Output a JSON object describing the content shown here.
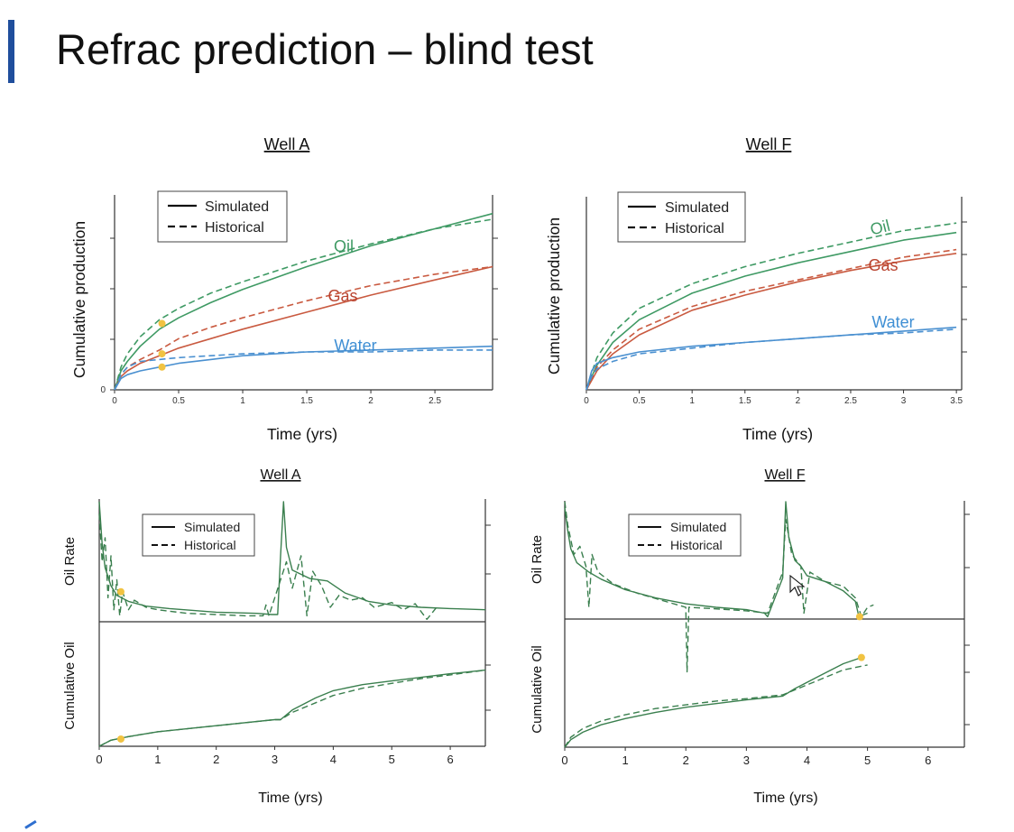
{
  "slide": {
    "title": "Refrac prediction – blind test"
  },
  "colors": {
    "oil": "#3f9a64",
    "gas": "#c95a40",
    "water": "#4a90d0",
    "rate": "#3a7f4e",
    "marker": "#f1c342",
    "accent": "#1f4e9c"
  },
  "legend": {
    "simulated": "Simulated",
    "historical": "Historical"
  },
  "chart_data": [
    {
      "id": "wellA_cum",
      "type": "line",
      "title": "Well A",
      "xlabel": "Time (yrs)",
      "ylabel": "Cumulative production",
      "xlim": [
        0,
        2.95
      ],
      "ylim": [
        0,
        1
      ],
      "xticks": [
        "0",
        "0.5",
        "1",
        "1.5",
        "2",
        "2.5"
      ],
      "yticks": [
        "0"
      ],
      "series_labels": [
        "Oil",
        "Gas",
        "Water"
      ],
      "series": [
        {
          "name": "Oil",
          "style": "simulated",
          "x": [
            0,
            0.05,
            0.1,
            0.2,
            0.35,
            0.5,
            0.75,
            1,
            1.5,
            2,
            2.5,
            2.95
          ],
          "y": [
            0,
            0.1,
            0.15,
            0.23,
            0.32,
            0.38,
            0.46,
            0.53,
            0.65,
            0.76,
            0.85,
            0.93
          ]
        },
        {
          "name": "Oil",
          "style": "historical",
          "x": [
            0,
            0.05,
            0.1,
            0.2,
            0.35,
            0.5,
            0.75,
            1,
            1.5,
            2,
            2.5,
            2.95
          ],
          "y": [
            0,
            0.12,
            0.19,
            0.28,
            0.37,
            0.43,
            0.51,
            0.57,
            0.68,
            0.77,
            0.85,
            0.9
          ]
        },
        {
          "name": "Gas",
          "style": "simulated",
          "x": [
            0,
            0.05,
            0.1,
            0.2,
            0.35,
            0.5,
            0.75,
            1,
            1.5,
            2,
            2.5,
            2.95
          ],
          "y": [
            0,
            0.07,
            0.1,
            0.14,
            0.18,
            0.22,
            0.27,
            0.32,
            0.41,
            0.5,
            0.58,
            0.65
          ]
        },
        {
          "name": "Gas",
          "style": "historical",
          "x": [
            0,
            0.05,
            0.1,
            0.2,
            0.35,
            0.5,
            0.75,
            1,
            1.5,
            2,
            2.5,
            2.95
          ],
          "y": [
            0,
            0.08,
            0.12,
            0.16,
            0.21,
            0.27,
            0.33,
            0.38,
            0.47,
            0.55,
            0.61,
            0.65
          ]
        },
        {
          "name": "Water",
          "style": "simulated",
          "x": [
            0,
            0.05,
            0.1,
            0.2,
            0.35,
            0.5,
            0.75,
            1,
            1.5,
            2,
            2.5,
            2.95
          ],
          "y": [
            0,
            0.06,
            0.08,
            0.1,
            0.12,
            0.14,
            0.16,
            0.18,
            0.2,
            0.21,
            0.22,
            0.23
          ]
        },
        {
          "name": "Water",
          "style": "historical",
          "x": [
            0,
            0.05,
            0.1,
            0.2,
            0.35,
            0.5,
            0.75,
            1,
            1.5,
            2,
            2.5,
            2.95
          ],
          "y": [
            0,
            0.08,
            0.12,
            0.15,
            0.16,
            0.17,
            0.18,
            0.19,
            0.2,
            0.2,
            0.21,
            0.21
          ]
        }
      ],
      "markers": [
        {
          "x": 0.37,
          "y": 0.35
        },
        {
          "x": 0.37,
          "y": 0.19
        },
        {
          "x": 0.37,
          "y": 0.12
        }
      ]
    },
    {
      "id": "wellF_cum",
      "type": "line",
      "title": "Well F",
      "xlabel": "Time (yrs)",
      "ylabel": "Cumulative production",
      "xlim": [
        0,
        3.55
      ],
      "ylim": [
        0,
        1
      ],
      "xticks": [
        "0",
        "0.5",
        "1",
        "1.5",
        "2",
        "2.5",
        "3",
        "3.5"
      ],
      "yticks": [],
      "series_labels": [
        "Oil",
        "Gas",
        "Water"
      ],
      "series": [
        {
          "name": "Oil",
          "style": "simulated",
          "x": [
            0,
            0.05,
            0.1,
            0.25,
            0.5,
            1,
            1.5,
            2,
            2.5,
            3,
            3.5
          ],
          "y": [
            0,
            0.07,
            0.13,
            0.25,
            0.37,
            0.51,
            0.6,
            0.67,
            0.73,
            0.79,
            0.83
          ]
        },
        {
          "name": "Oil",
          "style": "historical",
          "x": [
            0,
            0.05,
            0.1,
            0.25,
            0.5,
            1,
            1.5,
            2,
            2.5,
            3,
            3.5
          ],
          "y": [
            0,
            0.09,
            0.17,
            0.3,
            0.43,
            0.56,
            0.65,
            0.72,
            0.78,
            0.84,
            0.88
          ]
        },
        {
          "name": "Gas",
          "style": "simulated",
          "x": [
            0,
            0.05,
            0.1,
            0.25,
            0.5,
            1,
            1.5,
            2,
            2.5,
            3,
            3.5
          ],
          "y": [
            0,
            0.05,
            0.1,
            0.19,
            0.29,
            0.42,
            0.5,
            0.57,
            0.63,
            0.68,
            0.72
          ]
        },
        {
          "name": "Gas",
          "style": "historical",
          "x": [
            0,
            0.05,
            0.1,
            0.25,
            0.5,
            1,
            1.5,
            2,
            2.5,
            3,
            3.5
          ],
          "y": [
            0,
            0.06,
            0.12,
            0.21,
            0.32,
            0.44,
            0.52,
            0.58,
            0.64,
            0.7,
            0.74
          ]
        },
        {
          "name": "Water",
          "style": "simulated",
          "x": [
            0,
            0.05,
            0.1,
            0.25,
            0.5,
            1,
            1.5,
            2,
            2.5,
            3,
            3.5
          ],
          "y": [
            0,
            0.1,
            0.14,
            0.17,
            0.2,
            0.23,
            0.25,
            0.27,
            0.29,
            0.31,
            0.33
          ]
        },
        {
          "name": "Water",
          "style": "historical",
          "x": [
            0,
            0.05,
            0.1,
            0.25,
            0.5,
            1,
            1.5,
            2,
            2.5,
            3,
            3.5
          ],
          "y": [
            0,
            0.07,
            0.11,
            0.15,
            0.19,
            0.22,
            0.25,
            0.27,
            0.29,
            0.3,
            0.32
          ]
        }
      ]
    },
    {
      "id": "wellA_rate",
      "type": "line",
      "title": "Well A",
      "xlabel": "Time (yrs)",
      "panels": [
        {
          "ylabel": "Oil Rate",
          "ylim": [
            0,
            1
          ],
          "series": [
            {
              "name": "Simulated",
              "style": "simulated",
              "x": [
                0,
                0.05,
                0.1,
                0.2,
                0.3,
                0.5,
                0.8,
                1.2,
                2,
                2.7,
                2.95,
                3.05,
                3.1,
                3.15,
                3.2,
                3.3,
                3.6,
                3.9,
                4.2,
                4.6,
                5,
                5.5,
                6,
                6.6
              ],
              "y": [
                1,
                0.65,
                0.45,
                0.3,
                0.22,
                0.17,
                0.13,
                0.11,
                0.08,
                0.07,
                0.06,
                0.06,
                0.55,
                1,
                0.62,
                0.43,
                0.36,
                0.34,
                0.24,
                0.17,
                0.14,
                0.12,
                0.11,
                0.1
              ]
            },
            {
              "name": "Historical",
              "style": "historical",
              "x": [
                0,
                0.05,
                0.1,
                0.15,
                0.2,
                0.25,
                0.3,
                0.35,
                0.4,
                0.5,
                0.6,
                0.8,
                1,
                1.5,
                2,
                2.5,
                2.8,
                2.85,
                2.9,
                3.1,
                3.2,
                3.3,
                3.45,
                3.55,
                3.65,
                3.8,
                3.95,
                4.1,
                4.3,
                4.5,
                4.7,
                5,
                5.2,
                5.4,
                5.6,
                5.8
              ],
              "y": [
                0.9,
                0.5,
                0.7,
                0.2,
                0.55,
                0.1,
                0.35,
                0.05,
                0.25,
                0.1,
                0.18,
                0.12,
                0.1,
                0.07,
                0.06,
                0.05,
                0.05,
                0.14,
                0.05,
                0.35,
                0.5,
                0.28,
                0.55,
                0.05,
                0.42,
                0.3,
                0.12,
                0.22,
                0.18,
                0.2,
                0.12,
                0.16,
                0.1,
                0.15,
                0.02,
                0.14
              ]
            }
          ],
          "markers": [
            {
              "x": 0.37,
              "y": 0.25
            }
          ]
        },
        {
          "ylabel": "Cumulative Oil",
          "ylim": [
            0,
            1
          ],
          "series": [
            {
              "name": "Simulated",
              "style": "simulated",
              "x": [
                0,
                0.2,
                0.5,
                1,
                2,
                3,
                3.1,
                3.3,
                3.7,
                4,
                4.5,
                5,
                5.5,
                6,
                6.6
              ],
              "y": [
                0,
                0.05,
                0.08,
                0.12,
                0.17,
                0.22,
                0.22,
                0.3,
                0.4,
                0.46,
                0.51,
                0.54,
                0.57,
                0.6,
                0.63
              ]
            },
            {
              "name": "Historical",
              "style": "historical",
              "x": [
                0,
                0.2,
                0.5,
                1,
                2,
                3,
                3.1,
                3.3,
                3.7,
                4,
                4.5,
                5,
                5.5,
                6,
                6.6
              ],
              "y": [
                0,
                0.05,
                0.08,
                0.12,
                0.17,
                0.22,
                0.22,
                0.28,
                0.36,
                0.42,
                0.48,
                0.52,
                0.56,
                0.59,
                0.63
              ]
            }
          ],
          "markers": [
            {
              "x": 0.37,
              "y": 0.06
            }
          ]
        }
      ],
      "xlim": [
        0,
        6.6
      ],
      "xticks": [
        "0",
        "1",
        "2",
        "3",
        "4",
        "5",
        "6"
      ]
    },
    {
      "id": "wellF_rate",
      "type": "line",
      "title": "Well F",
      "xlabel": "Time (yrs)",
      "panels": [
        {
          "ylabel": "Oil Rate",
          "ylim": [
            0,
            1
          ],
          "series": [
            {
              "name": "Simulated",
              "style": "simulated",
              "x": [
                0,
                0.05,
                0.1,
                0.2,
                0.4,
                0.6,
                1,
                1.5,
                2,
                2.5,
                3,
                3.3,
                3.35,
                3.6,
                3.65,
                3.7,
                3.8,
                3.9,
                4,
                4.3,
                4.6,
                4.8,
                4.85,
                4.9,
                5
              ],
              "y": [
                0.95,
                0.75,
                0.6,
                0.48,
                0.4,
                0.34,
                0.25,
                0.18,
                0.13,
                0.1,
                0.08,
                0.05,
                0.02,
                0.35,
                1,
                0.7,
                0.5,
                0.45,
                0.37,
                0.32,
                0.24,
                0.15,
                0.04,
                0.03,
                0.05
              ]
            },
            {
              "name": "Historical",
              "style": "historical",
              "x": [
                0,
                0.05,
                0.15,
                0.25,
                0.35,
                0.4,
                0.45,
                0.55,
                0.8,
                1.2,
                1.6,
                2,
                2.02,
                2.05,
                2.4,
                3,
                3.35,
                3.6,
                3.65,
                3.75,
                3.9,
                3.95,
                4.05,
                4.3,
                4.6,
                4.8,
                4.9,
                5,
                5.1
              ],
              "y": [
                1,
                0.8,
                0.55,
                0.62,
                0.45,
                0.1,
                0.55,
                0.4,
                0.3,
                0.22,
                0.16,
                0.1,
                -0.45,
                0.1,
                0.09,
                0.07,
                0.05,
                0.4,
                0.85,
                0.55,
                0.45,
                0.05,
                0.4,
                0.32,
                0.28,
                0.18,
                0.02,
                0.1,
                0.12
              ]
            }
          ],
          "markers": [
            {
              "x": 4.87,
              "y": 0.02
            }
          ]
        },
        {
          "ylabel": "Cumulative Oil",
          "ylim": [
            0,
            1
          ],
          "series": [
            {
              "name": "Simulated",
              "style": "simulated",
              "x": [
                0,
                0.05,
                0.1,
                0.3,
                0.6,
                1,
                1.5,
                2,
                2.5,
                3,
                3.6,
                3.8,
                4.2,
                4.6,
                4.9
              ],
              "y": [
                0,
                0.03,
                0.06,
                0.12,
                0.18,
                0.23,
                0.28,
                0.32,
                0.35,
                0.38,
                0.41,
                0.47,
                0.57,
                0.67,
                0.72
              ]
            },
            {
              "name": "Historical",
              "style": "historical",
              "x": [
                0,
                0.05,
                0.1,
                0.3,
                0.6,
                1,
                1.5,
                2,
                2.5,
                3,
                3.6,
                3.8,
                4.2,
                4.6,
                5
              ],
              "y": [
                0,
                0.04,
                0.08,
                0.15,
                0.21,
                0.26,
                0.31,
                0.34,
                0.37,
                0.39,
                0.42,
                0.46,
                0.54,
                0.62,
                0.66
              ]
            }
          ],
          "markers": [
            {
              "x": 4.9,
              "y": 0.72
            }
          ]
        }
      ],
      "xlim": [
        0,
        6.6
      ],
      "xticks": [
        "0",
        "1",
        "2",
        "3",
        "4",
        "5",
        "6"
      ]
    }
  ]
}
